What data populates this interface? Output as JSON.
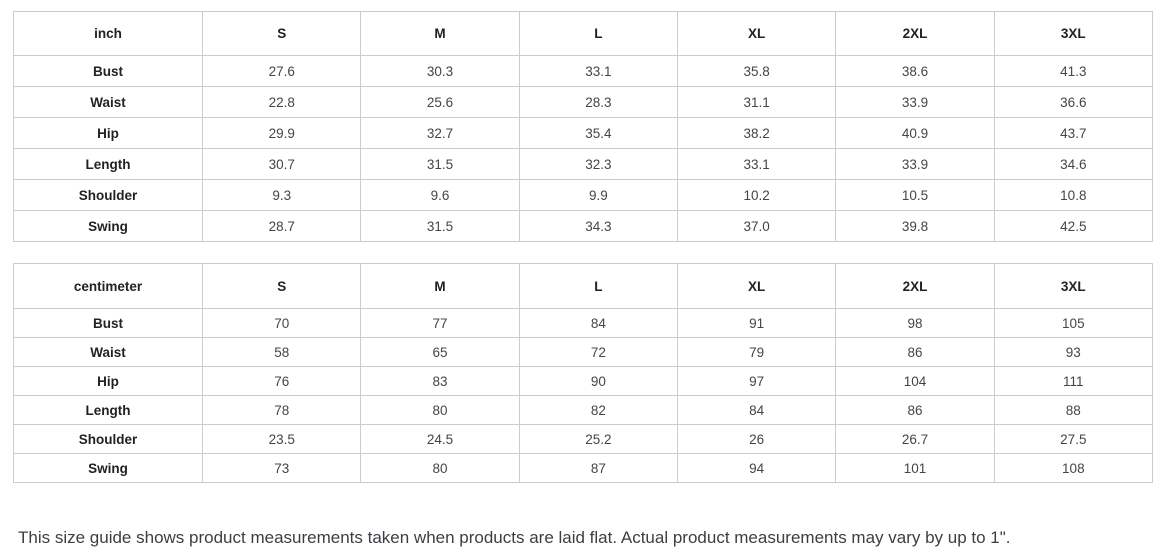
{
  "colors": {
    "table_border": "#cccccc",
    "header_text": "#222222",
    "cell_text": "#454545",
    "note_text": "#3b3f43"
  },
  "tables": [
    {
      "unit_label": "inch",
      "columns": [
        "S",
        "M",
        "L",
        "XL",
        "2XL",
        "3XL"
      ],
      "rows": [
        {
          "label": "Bust",
          "values": [
            "27.6",
            "30.3",
            "33.1",
            "35.8",
            "38.6",
            "41.3"
          ]
        },
        {
          "label": "Waist",
          "values": [
            "22.8",
            "25.6",
            "28.3",
            "31.1",
            "33.9",
            "36.6"
          ]
        },
        {
          "label": "Hip",
          "values": [
            "29.9",
            "32.7",
            "35.4",
            "38.2",
            "40.9",
            "43.7"
          ]
        },
        {
          "label": "Length",
          "values": [
            "30.7",
            "31.5",
            "32.3",
            "33.1",
            "33.9",
            "34.6"
          ]
        },
        {
          "label": "Shoulder",
          "values": [
            "9.3",
            "9.6",
            "9.9",
            "10.2",
            "10.5",
            "10.8"
          ]
        },
        {
          "label": "Swing",
          "values": [
            "28.7",
            "31.5",
            "34.3",
            "37.0",
            "39.8",
            "42.5"
          ]
        }
      ]
    },
    {
      "unit_label": "centimeter",
      "columns": [
        "S",
        "M",
        "L",
        "XL",
        "2XL",
        "3XL"
      ],
      "rows": [
        {
          "label": "Bust",
          "values": [
            "70",
            "77",
            "84",
            "91",
            "98",
            "105"
          ]
        },
        {
          "label": "Waist",
          "values": [
            "58",
            "65",
            "72",
            "79",
            "86",
            "93"
          ]
        },
        {
          "label": "Hip",
          "values": [
            "76",
            "83",
            "90",
            "97",
            "104",
            "111"
          ]
        },
        {
          "label": "Length",
          "values": [
            "78",
            "80",
            "82",
            "84",
            "86",
            "88"
          ]
        },
        {
          "label": "Shoulder",
          "values": [
            "23.5",
            "24.5",
            "25.2",
            "26",
            "26.7",
            "27.5"
          ]
        },
        {
          "label": "Swing",
          "values": [
            "73",
            "80",
            "87",
            "94",
            "101",
            "108"
          ]
        }
      ]
    }
  ],
  "note": {
    "text": "This size guide shows product measurements taken when products are laid flat. Actual product measurements may vary by up to 1\"."
  }
}
